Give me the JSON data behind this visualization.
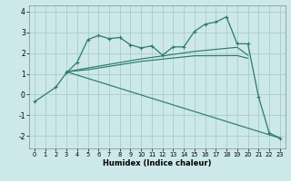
{
  "xlabel": "Humidex (Indice chaleur)",
  "bg_color": "#cce8e8",
  "grid_color": "#aacccc",
  "line_color": "#2d7a6e",
  "xlim": [
    -0.5,
    23.5
  ],
  "ylim": [
    -2.6,
    4.3
  ],
  "yticks": [
    -2,
    -1,
    0,
    1,
    2,
    3,
    4
  ],
  "xticks": [
    0,
    1,
    2,
    3,
    4,
    5,
    6,
    7,
    8,
    9,
    10,
    11,
    12,
    13,
    14,
    15,
    16,
    17,
    18,
    19,
    20,
    21,
    22,
    23
  ],
  "series": [
    {
      "x": [
        0,
        2,
        3,
        4,
        5,
        6,
        7,
        8,
        9,
        10,
        11,
        12,
        13,
        14,
        15,
        16,
        17,
        18,
        19,
        20,
        21,
        22,
        23
      ],
      "y": [
        -0.35,
        0.35,
        1.05,
        1.55,
        2.65,
        2.85,
        2.7,
        2.75,
        2.4,
        2.25,
        2.35,
        1.9,
        2.3,
        2.3,
        3.05,
        3.4,
        3.5,
        3.75,
        2.45,
        2.45,
        -0.1,
        -1.85,
        -2.1
      ],
      "marker": true
    },
    {
      "x": [
        3,
        5,
        10,
        15,
        19,
        20
      ],
      "y": [
        1.1,
        1.28,
        1.72,
        2.08,
        2.28,
        1.9
      ],
      "marker": false
    },
    {
      "x": [
        3,
        5,
        10,
        15,
        19,
        20
      ],
      "y": [
        1.1,
        1.2,
        1.6,
        1.87,
        1.88,
        1.75
      ],
      "marker": false
    },
    {
      "x": [
        3,
        23
      ],
      "y": [
        1.1,
        -2.1
      ],
      "marker": false
    }
  ]
}
